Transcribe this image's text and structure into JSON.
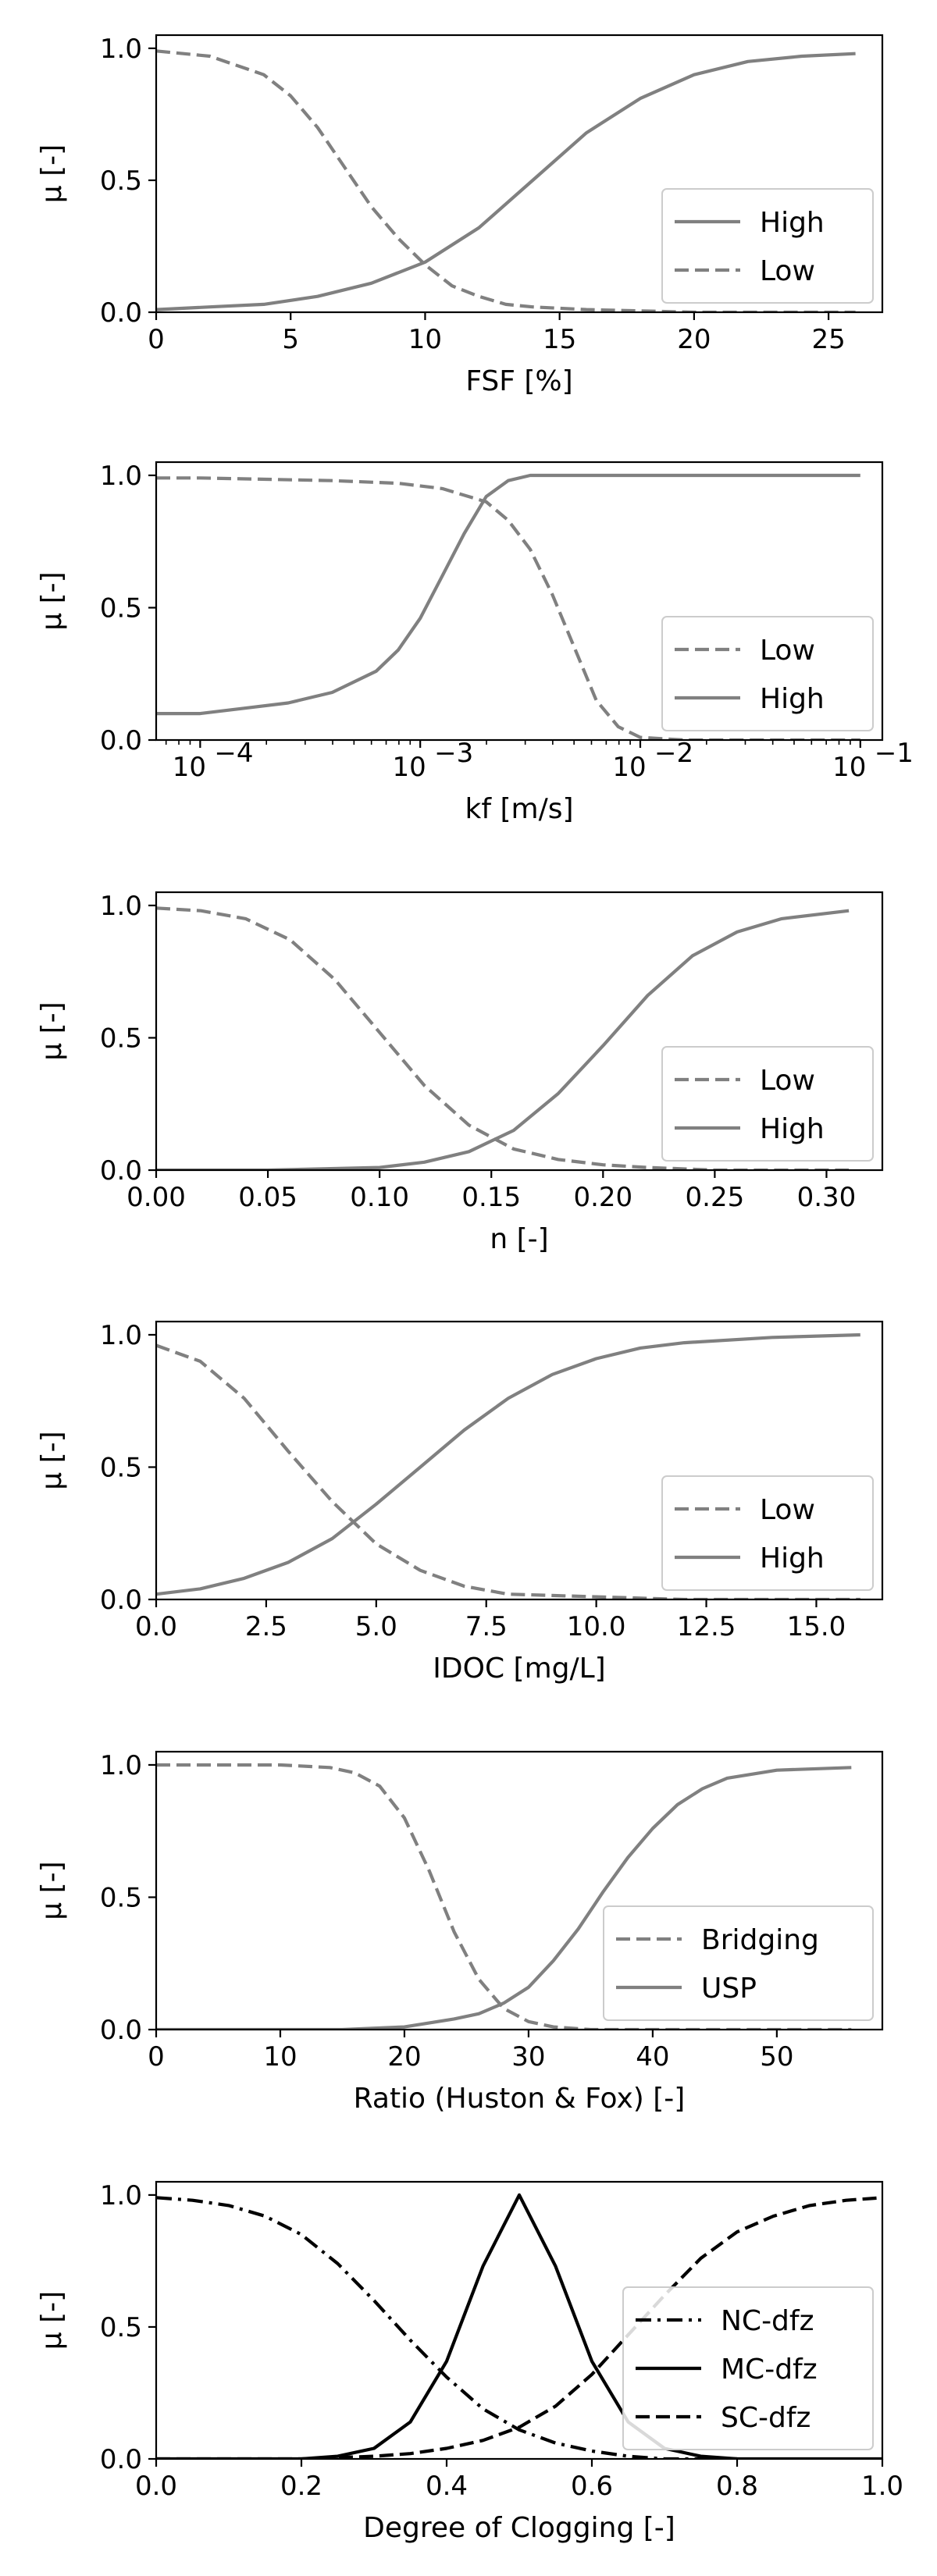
{
  "chart_data": [
    {
      "type": "line",
      "xlabel": "FSF [%]",
      "ylabel": "μ [-]",
      "xlim": [
        0,
        27
      ],
      "ylim": [
        0,
        1.05
      ],
      "x_scale": "linear",
      "xticks": [
        0,
        5,
        10,
        15,
        20,
        25
      ],
      "xtick_labels": [
        "0",
        "5",
        "10",
        "15",
        "20",
        "25"
      ],
      "yticks": [
        0,
        0.5,
        1
      ],
      "ytick_labels": [
        "0.0",
        "0.5",
        "1.0"
      ],
      "legend_position": "lower-right",
      "series": [
        {
          "name": "High",
          "style": "solid",
          "color": "#808080",
          "x": [
            0,
            2,
            4,
            6,
            8,
            10,
            12,
            14,
            16,
            18,
            20,
            22,
            24,
            26
          ],
          "y": [
            0.01,
            0.02,
            0.03,
            0.06,
            0.11,
            0.19,
            0.32,
            0.5,
            0.68,
            0.81,
            0.9,
            0.95,
            0.97,
            0.98
          ]
        },
        {
          "name": "Low",
          "style": "dashed",
          "color": "#808080",
          "x": [
            0,
            2,
            4,
            5,
            6,
            7,
            8,
            9,
            10,
            11,
            12,
            13,
            14,
            16,
            20,
            26
          ],
          "y": [
            0.99,
            0.97,
            0.9,
            0.82,
            0.7,
            0.55,
            0.4,
            0.28,
            0.18,
            0.1,
            0.06,
            0.03,
            0.02,
            0.01,
            0.0,
            0.0
          ]
        }
      ]
    },
    {
      "type": "line",
      "xlabel": "kf [m/s]",
      "ylabel": "μ [-]",
      "xlim": [
        -4.2,
        -0.9
      ],
      "ylim": [
        0,
        1.05
      ],
      "x_scale": "log10",
      "xticks": [
        -4,
        -3,
        -2,
        -1
      ],
      "xtick_labels": [
        "10",
        "10",
        "10",
        "10"
      ],
      "xtick_exponents": [
        "−4",
        "−3",
        "−2",
        "−1"
      ],
      "yticks": [
        0,
        0.5,
        1
      ],
      "ytick_labels": [
        "0.0",
        "0.5",
        "1.0"
      ],
      "legend_position": "lower-right",
      "series": [
        {
          "name": "Low",
          "style": "dashed",
          "color": "#808080",
          "x": [
            -4.2,
            -4.0,
            -3.7,
            -3.4,
            -3.1,
            -2.9,
            -2.7,
            -2.6,
            -2.5,
            -2.4,
            -2.3,
            -2.2,
            -2.1,
            -2.0,
            -1.8,
            -1.5,
            -1.0
          ],
          "y": [
            0.99,
            0.99,
            0.985,
            0.98,
            0.97,
            0.95,
            0.9,
            0.83,
            0.72,
            0.55,
            0.35,
            0.15,
            0.05,
            0.01,
            0.0,
            0.0,
            0.0
          ]
        },
        {
          "name": "High",
          "style": "solid",
          "color": "#808080",
          "x": [
            -4.2,
            -4.0,
            -3.8,
            -3.6,
            -3.4,
            -3.2,
            -3.1,
            -3.0,
            -2.9,
            -2.8,
            -2.7,
            -2.6,
            -2.5,
            -2.3,
            -2.0,
            -1.0
          ],
          "y": [
            0.1,
            0.1,
            0.12,
            0.14,
            0.18,
            0.26,
            0.34,
            0.46,
            0.62,
            0.78,
            0.92,
            0.98,
            1.0,
            1.0,
            1.0,
            1.0
          ]
        }
      ]
    },
    {
      "type": "line",
      "xlabel": "n [-]",
      "ylabel": "μ [-]",
      "xlim": [
        0,
        0.325
      ],
      "ylim": [
        0,
        1.05
      ],
      "x_scale": "linear",
      "xticks": [
        0,
        0.05,
        0.1,
        0.15,
        0.2,
        0.25,
        0.3
      ],
      "xtick_labels": [
        "0.00",
        "0.05",
        "0.10",
        "0.15",
        "0.20",
        "0.25",
        "0.30"
      ],
      "yticks": [
        0,
        0.5,
        1
      ],
      "ytick_labels": [
        "0.0",
        "0.5",
        "1.0"
      ],
      "legend_position": "lower-right",
      "series": [
        {
          "name": "Low",
          "style": "dashed",
          "color": "#808080",
          "x": [
            0,
            0.02,
            0.04,
            0.06,
            0.08,
            0.1,
            0.12,
            0.14,
            0.16,
            0.18,
            0.2,
            0.22,
            0.25,
            0.31
          ],
          "y": [
            0.99,
            0.98,
            0.95,
            0.87,
            0.72,
            0.52,
            0.32,
            0.17,
            0.08,
            0.04,
            0.02,
            0.01,
            0.0,
            0.0
          ]
        },
        {
          "name": "High",
          "style": "solid",
          "color": "#808080",
          "x": [
            0,
            0.05,
            0.1,
            0.12,
            0.14,
            0.16,
            0.18,
            0.2,
            0.22,
            0.24,
            0.26,
            0.28,
            0.31
          ],
          "y": [
            0.0,
            0.0,
            0.01,
            0.03,
            0.07,
            0.15,
            0.29,
            0.47,
            0.66,
            0.81,
            0.9,
            0.95,
            0.98
          ]
        }
      ]
    },
    {
      "type": "line",
      "xlabel": "IDOC [mg/L]",
      "ylabel": "μ [-]",
      "xlim": [
        0,
        16.5
      ],
      "ylim": [
        0,
        1.05
      ],
      "x_scale": "linear",
      "xticks": [
        0,
        2.5,
        5,
        7.5,
        10,
        12.5,
        15
      ],
      "xtick_labels": [
        "0.0",
        "2.5",
        "5.0",
        "7.5",
        "10.0",
        "12.5",
        "15.0"
      ],
      "yticks": [
        0,
        0.5,
        1
      ],
      "ytick_labels": [
        "0.0",
        "0.5",
        "1.0"
      ],
      "legend_position": "lower-right",
      "series": [
        {
          "name": "Low",
          "style": "dashed",
          "color": "#808080",
          "x": [
            0,
            1,
            2,
            3,
            4,
            5,
            6,
            7,
            8,
            10,
            12,
            16
          ],
          "y": [
            0.96,
            0.9,
            0.76,
            0.56,
            0.37,
            0.21,
            0.11,
            0.05,
            0.02,
            0.01,
            0.0,
            0.0
          ]
        },
        {
          "name": "High",
          "style": "solid",
          "color": "#808080",
          "x": [
            0,
            1,
            2,
            3,
            4,
            5,
            6,
            7,
            8,
            9,
            10,
            11,
            12,
            14,
            16
          ],
          "y": [
            0.02,
            0.04,
            0.08,
            0.14,
            0.23,
            0.36,
            0.5,
            0.64,
            0.76,
            0.85,
            0.91,
            0.95,
            0.97,
            0.99,
            1.0
          ]
        }
      ]
    },
    {
      "type": "line",
      "xlabel": "Ratio (Huston & Fox) [-]",
      "ylabel": "μ [-]",
      "xlim": [
        0,
        58.5
      ],
      "ylim": [
        0,
        1.05
      ],
      "x_scale": "linear",
      "xticks": [
        0,
        10,
        20,
        30,
        40,
        50
      ],
      "xtick_labels": [
        "0",
        "10",
        "20",
        "30",
        "40",
        "50"
      ],
      "yticks": [
        0,
        0.5,
        1
      ],
      "ytick_labels": [
        "0.0",
        "0.5",
        "1.0"
      ],
      "legend_position": "lower-right",
      "series": [
        {
          "name": "Bridging",
          "style": "dashed",
          "color": "#808080",
          "x": [
            0,
            10,
            14,
            16,
            18,
            20,
            22,
            24,
            26,
            28,
            30,
            32,
            35,
            40,
            56
          ],
          "y": [
            1.0,
            1.0,
            0.99,
            0.97,
            0.92,
            0.8,
            0.6,
            0.37,
            0.19,
            0.08,
            0.03,
            0.01,
            0.0,
            0.0,
            0.0
          ]
        },
        {
          "name": "USP",
          "style": "solid",
          "color": "#808080",
          "x": [
            0,
            10,
            15,
            20,
            24,
            26,
            28,
            30,
            32,
            34,
            36,
            38,
            40,
            42,
            44,
            46,
            50,
            56
          ],
          "y": [
            0.0,
            0.0,
            0.0,
            0.01,
            0.04,
            0.06,
            0.1,
            0.16,
            0.26,
            0.38,
            0.52,
            0.65,
            0.76,
            0.85,
            0.91,
            0.95,
            0.98,
            0.99
          ]
        }
      ]
    },
    {
      "type": "line",
      "xlabel": "Degree of Clogging [-]",
      "ylabel": "μ [-]",
      "xlim": [
        0,
        1
      ],
      "ylim": [
        0,
        1.05
      ],
      "x_scale": "linear",
      "xticks": [
        0,
        0.2,
        0.4,
        0.6,
        0.8,
        1
      ],
      "xtick_labels": [
        "0.0",
        "0.2",
        "0.4",
        "0.6",
        "0.8",
        "1.0"
      ],
      "yticks": [
        0,
        0.5,
        1
      ],
      "ytick_labels": [
        "0.0",
        "0.5",
        "1.0"
      ],
      "legend_position": "lower-right",
      "series": [
        {
          "name": "NC-dfz",
          "style": "dashdot",
          "color": "#000000",
          "x": [
            0,
            0.05,
            0.1,
            0.15,
            0.2,
            0.25,
            0.3,
            0.35,
            0.4,
            0.45,
            0.5,
            0.55,
            0.6,
            0.65,
            0.7,
            0.75,
            0.8
          ],
          "y": [
            0.99,
            0.98,
            0.96,
            0.92,
            0.85,
            0.74,
            0.6,
            0.45,
            0.31,
            0.19,
            0.11,
            0.06,
            0.03,
            0.01,
            0.0,
            0.0,
            0.0
          ]
        },
        {
          "name": "MC-dfz",
          "style": "solid",
          "color": "#000000",
          "x": [
            0,
            0.2,
            0.25,
            0.3,
            0.35,
            0.4,
            0.45,
            0.5,
            0.55,
            0.6,
            0.65,
            0.7,
            0.75,
            0.8,
            1.0
          ],
          "y": [
            0.0,
            0.0,
            0.01,
            0.04,
            0.14,
            0.37,
            0.73,
            1.0,
            0.73,
            0.37,
            0.14,
            0.04,
            0.01,
            0.0,
            0.0
          ]
        },
        {
          "name": "SC-dfz",
          "style": "dashed",
          "color": "#000000",
          "x": [
            0,
            0.2,
            0.3,
            0.35,
            0.4,
            0.45,
            0.5,
            0.55,
            0.6,
            0.65,
            0.7,
            0.75,
            0.8,
            0.85,
            0.9,
            0.95,
            1.0
          ],
          "y": [
            0.0,
            0.0,
            0.01,
            0.02,
            0.04,
            0.07,
            0.12,
            0.2,
            0.32,
            0.47,
            0.62,
            0.76,
            0.86,
            0.92,
            0.96,
            0.98,
            0.99
          ]
        }
      ]
    }
  ]
}
